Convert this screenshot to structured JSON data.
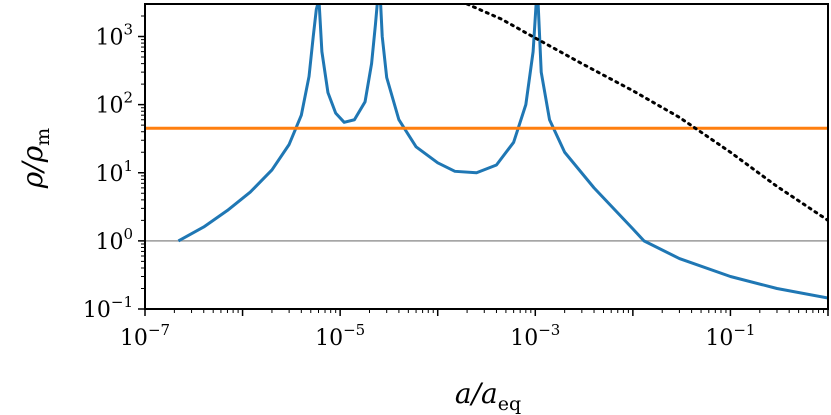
{
  "chart_data": {
    "type": "line",
    "title": "",
    "xlabel": {
      "main": "a/a",
      "sub": "eq"
    },
    "ylabel": {
      "main": "ρ/ρ",
      "sub": "m"
    },
    "xscale": "log",
    "yscale": "log",
    "xlim": [
      1e-07,
      1.0
    ],
    "ylim": [
      0.1,
      3000
    ],
    "grid": false,
    "legend": "none",
    "x_ticks": [
      {
        "value": 1e-07,
        "base": "10",
        "exp": "−7"
      },
      {
        "value": 1e-05,
        "base": "10",
        "exp": "−5"
      },
      {
        "value": 0.001,
        "base": "10",
        "exp": "−3"
      },
      {
        "value": 0.1,
        "base": "10",
        "exp": "−1"
      }
    ],
    "y_ticks": [
      {
        "value": 0.1,
        "base": "10",
        "exp": "−1"
      },
      {
        "value": 1,
        "base": "10",
        "exp": "0"
      },
      {
        "value": 10,
        "base": "10",
        "exp": "1"
      },
      {
        "value": 100,
        "base": "10",
        "exp": "2"
      },
      {
        "value": 1000,
        "base": "10",
        "exp": "3"
      }
    ],
    "series": [
      {
        "style": "solid",
        "color": "#1f77b4",
        "segments": [
          {
            "x": [
              2.2e-07,
              4e-07,
              7e-07,
              1.2e-06,
              2e-06,
              3e-06,
              4e-06,
              4.8e-06,
              5.3e-06,
              5.7e-06,
              5.9e-06
            ],
            "y": [
              1.0,
              1.6,
              2.8,
              5.2,
              11,
              26,
              70,
              260,
              1000,
              2500,
              3000
            ]
          },
          {
            "x": [
              6.1e-06,
              6.5e-06,
              7.5e-06,
              9e-06,
              1.1e-05,
              1.4e-05,
              1.8e-05,
              2.1e-05,
              2.3e-05,
              2.4e-05
            ],
            "y": [
              3000,
              600,
              150,
              75,
              55,
              60,
              110,
              400,
              1500,
              3000
            ]
          },
          {
            "x": [
              2.6e-05,
              2.7e-05,
              3e-05,
              4e-05,
              6e-05,
              0.0001,
              0.00015,
              0.00025,
              0.0004,
              0.0006,
              0.0008,
              0.00095,
              0.00102
            ],
            "y": [
              3000,
              1000,
              250,
              60,
              24,
              14,
              10.5,
              10,
              13,
              28,
              100,
              600,
              3000
            ]
          },
          {
            "x": [
              0.00107,
              0.00115,
              0.0014,
              0.002,
              0.004,
              0.01,
              0.013,
              0.03,
              0.1,
              0.3,
              1.0
            ],
            "y": [
              3000,
              300,
              60,
              20,
              6,
              1.5,
              1.0,
              0.55,
              0.3,
              0.2,
              0.145
            ]
          }
        ]
      },
      {
        "style": "solid",
        "color": "#ff7f0e",
        "x": [
          1e-07,
          1.0
        ],
        "y": [
          45,
          45
        ]
      },
      {
        "style": "dotted",
        "color": "#000000",
        "x": [
          0.0002,
          0.00045,
          0.001,
          0.003,
          0.01,
          0.03,
          0.1,
          0.3,
          1.0
        ],
        "y": [
          3000,
          1800,
          950,
          400,
          160,
          65,
          20,
          6.3,
          2.0
        ]
      },
      {
        "style": "solid",
        "color": "#999999",
        "x": [
          1e-07,
          1.0
        ],
        "y": [
          1,
          1
        ]
      }
    ]
  }
}
